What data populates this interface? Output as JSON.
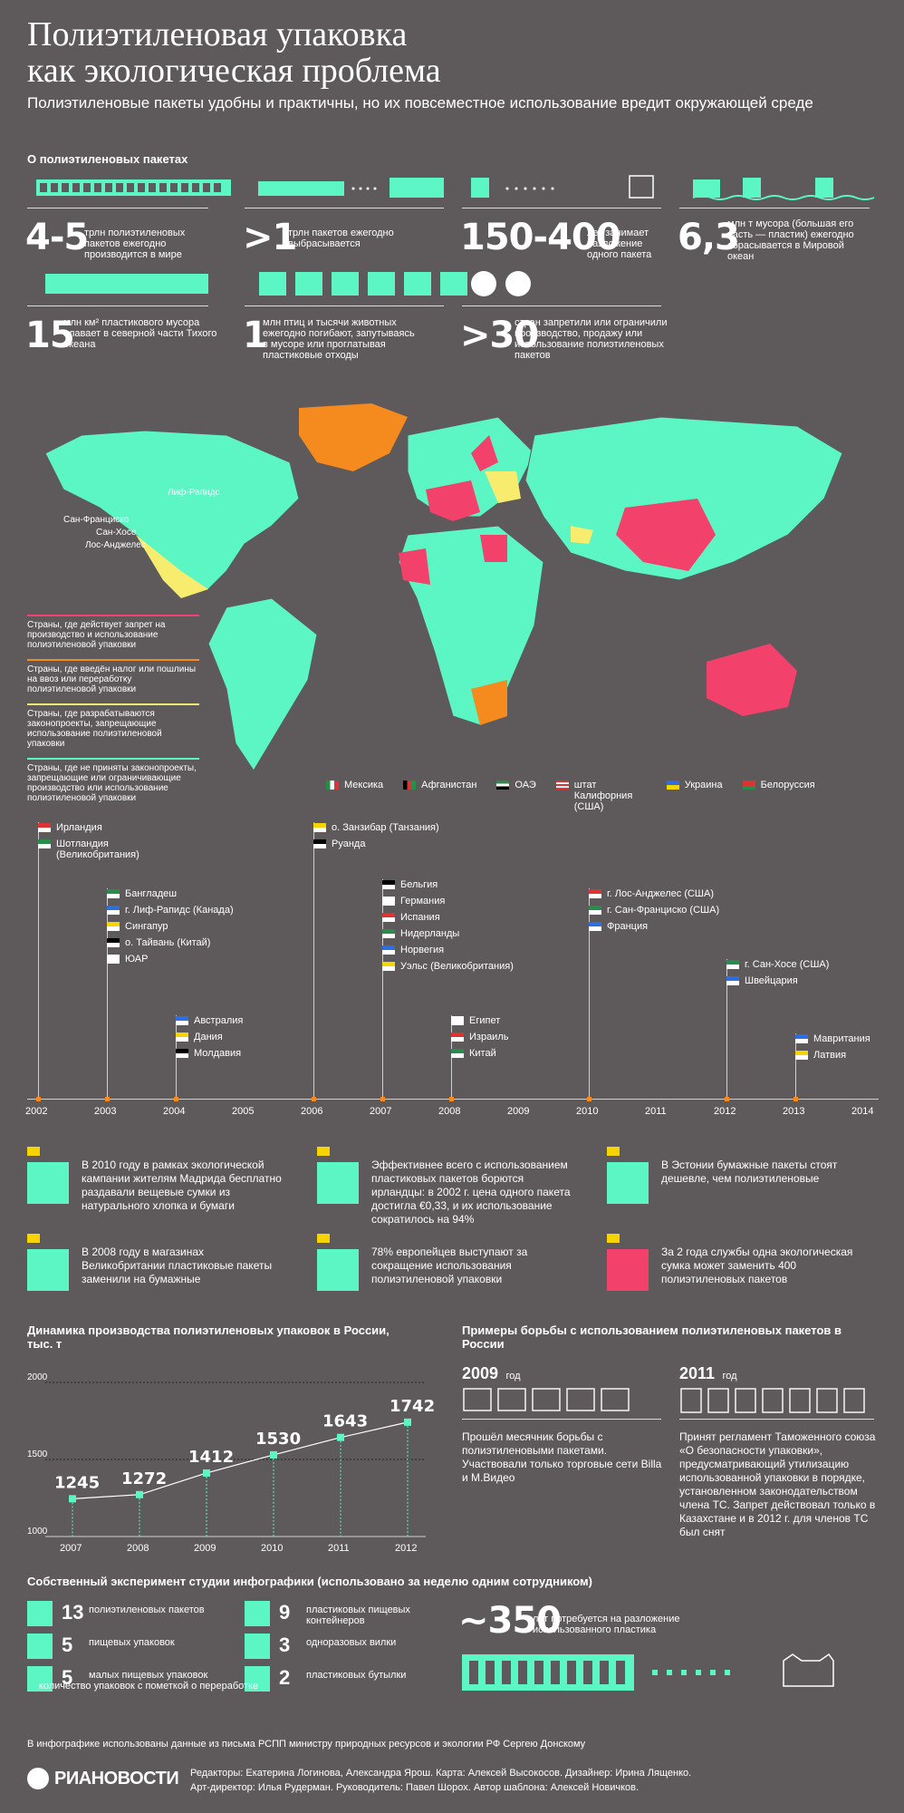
{
  "header": {
    "title_line1": "Полиэтиленовая упаковка",
    "title_line2": "как экологическая проблема",
    "subtitle": "Полиэтиленовые пакеты удобны и практичны, но их повсеместное использование вредит окружающей среде"
  },
  "about": {
    "heading": "О полиэтиленовых пакетах",
    "stats": [
      {
        "value": "4-5",
        "text": "трлн полиэтиленовых пакетов ежегодно производится в мире"
      },
      {
        "value": ">1",
        "text": "трлн пакетов ежегодно выбрасывается"
      },
      {
        "value": "150-400",
        "text": "лет занимает разложение одного пакета"
      },
      {
        "value": "6,3",
        "text": "млн т мусора (большая его часть — пластик) ежегодно сбрасывается в Мировой океан"
      },
      {
        "value": "15",
        "text": "млн км² пластикового мусора плавает в северной части Тихого океана"
      },
      {
        "value": "1",
        "text": "млн птиц и тысячи животных ежегодно погибают, запутываясь в мусоре или проглатывая пластиковые отходы"
      },
      {
        "value": ">30",
        "text": "стран запретили или ограничили производство, продажу или использование полиэтиленовых пакетов"
      }
    ]
  },
  "map": {
    "cities": [
      "Лиф-Рапидс",
      "Сан-Франциско",
      "Сан-Хосе",
      "Лос-Анджелес"
    ],
    "legend": [
      {
        "color": "#f2416a",
        "text": "Страны, где действует запрет на производство и использование полиэтиленовой упаковки"
      },
      {
        "color": "#f58a1f",
        "text": "Страны, где введён налог или пошлины на ввоз или переработку полиэтиленовой упаковки"
      },
      {
        "color": "#f7ec6e",
        "text": "Страны, где разрабатываются законопроекты, запрещающие использование полиэтиленовой упаковки"
      },
      {
        "color": "#5cf5c4",
        "text": "Страны, где не приняты законопроекты, запрещающие или ограничивающие производство или использование полиэтиленовой упаковки"
      }
    ],
    "bottom_flags": [
      "Мексика",
      "Афганистан",
      "ОАЭ",
      "штат Калифорния (США)",
      "Украина",
      "Белоруссия"
    ]
  },
  "timeline": {
    "years": [
      "2002",
      "2003",
      "2004",
      "2005",
      "2006",
      "2007",
      "2008",
      "2009",
      "2010",
      "2011",
      "2012",
      "2013",
      "2014"
    ],
    "groups": [
      {
        "year": "2002",
        "items": [
          "Ирландия",
          "Шотландия (Великобритания)"
        ]
      },
      {
        "year": "2003",
        "items": [
          "Бангладеш",
          "г. Лиф-Рапидс (Канада)",
          "Сингапур",
          "о. Тайвань (Китай)",
          "ЮАР"
        ]
      },
      {
        "year": "2004",
        "items": [
          "Австралия",
          "Дания",
          "Молдавия"
        ]
      },
      {
        "year": "2006",
        "items": [
          "о. Занзибар (Танзания)",
          "Руанда"
        ]
      },
      {
        "year": "2007",
        "items": [
          "Бельгия",
          "Германия",
          "Испания",
          "Нидерланды",
          "Норвегия",
          "Уэльс (Великобритания)"
        ]
      },
      {
        "year": "2008",
        "items": [
          "Египет",
          "Израиль",
          "Китай"
        ]
      },
      {
        "year": "2010",
        "items": [
          "г. Лос-Анджелес (США)",
          "г. Сан-Франциско (США)",
          "Франция"
        ]
      },
      {
        "year": "2012",
        "items": [
          "г. Сан-Хосе (США)",
          "Швейцария"
        ]
      },
      {
        "year": "2013",
        "items": [
          "Мавритания",
          "Латвия"
        ]
      }
    ]
  },
  "facts": [
    "В 2010 году в рамках экологической кампании жителям Мадрида бесплатно раздавали вещевые сумки из натурального хлопка и бумаги",
    "Эффективнее всего с использованием пластиковых пакетов борются ирландцы: в 2002 г. цена одного пакета достигла €0,33, и их использование сократилось на 94%",
    "В Эстонии бумажные пакеты стоят дешевле, чем полиэтиленовые",
    "В 2008 году в магазинах Великобритании пластиковые пакеты заменили на бумажные",
    "78% европейцев выступают за сокращение использования полиэтиленовой упаковки",
    "За 2 года службы одна экологическая сумка может заменить 400 полиэтиленовых пакетов"
  ],
  "chart_data": {
    "type": "line",
    "title": "Динамика производства полиэтиленовых упаковок в России, тыс. т",
    "x": [
      "2007",
      "2008",
      "2009",
      "2010",
      "2011",
      "2012"
    ],
    "values": [
      1245,
      1272,
      1412,
      1530,
      1643,
      1742
    ],
    "ylim": [
      1000,
      2000
    ],
    "yticks": [
      "1000",
      "1500",
      "2000"
    ],
    "color": "#5cf5c4"
  },
  "russia": {
    "heading": "Примеры борьбы с использованием полиэтиленовых пакетов в России",
    "y2009": "2009",
    "y2011": "2011",
    "year_unit": "год",
    "text2009": "Прошёл месячник борьбы с полиэтиленовыми пакетами. Участвовали только торговые сети Billa и М.Видео",
    "text2011": "Принят регламент Таможенного союза «О безопасности упаковки», предусматривающий утилизацию использованной упаковки в порядке, установленном законодательством члена ТС. Запрет действовал только в Казахстане и в 2012 г. для членов ТС был снят"
  },
  "experiment": {
    "heading": "Собственный эксперимент студии инфографики (использовано за неделю одним сотрудником)",
    "items": [
      {
        "num": "13",
        "text": "полиэтиленовых пакетов"
      },
      {
        "num": "5",
        "text": "пищевых упаковок"
      },
      {
        "num": "5",
        "text": "малых пищевых упаковок"
      },
      {
        "num": "9",
        "text": "пластиковых пищевых контейнеров"
      },
      {
        "num": "3",
        "text": "одноразовых вилки"
      },
      {
        "num": "2",
        "text": "пластиковых бутылки"
      }
    ],
    "note": "количество упаковок с пометкой о переработке",
    "decay_value": "~350",
    "decay_text": "лет потребуется на разложение использованного пластика"
  },
  "footer": {
    "source": "В инфографике использованы данные из письма РСПП министру природных ресурсов и экологии РФ Сергею Донскому",
    "logo": "РИАНОВОСТИ",
    "credits1": "Редакторы: Екатерина Логинова, Александра Ярош. Карта: Алексей Высокосов. Дизайнер: Ирина Лященко.",
    "credits2": "Арт-директор: Илья Рудерман. Руководитель: Павел Шорох. Автор шаблона: Алексей Новичков."
  }
}
